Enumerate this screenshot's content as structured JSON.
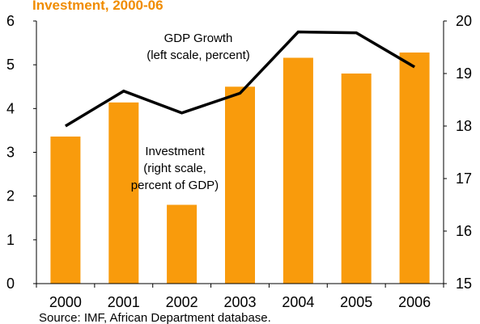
{
  "chart_data": {
    "type": "bar+line",
    "title": "Investment, 2000-06",
    "categories": [
      "2000",
      "2001",
      "2002",
      "2003",
      "2004",
      "2005",
      "2006"
    ],
    "series": [
      {
        "name": "Investment",
        "type": "bar",
        "axis": "right",
        "values": [
          17.8,
          18.45,
          16.5,
          18.75,
          19.3,
          19.0,
          19.4
        ]
      },
      {
        "name": "GDP Growth",
        "type": "line",
        "axis": "left",
        "values": [
          3.6,
          4.4,
          3.9,
          4.35,
          5.75,
          5.73,
          4.95
        ]
      }
    ],
    "left_axis": {
      "ylim": [
        0,
        6
      ],
      "ticks": [
        "0",
        "1",
        "2",
        "3",
        "4",
        "5",
        "6"
      ]
    },
    "right_axis": {
      "ylim": [
        15,
        20
      ],
      "ticks": [
        "15",
        "16",
        "17",
        "18",
        "19",
        "20"
      ]
    },
    "annotations": [
      {
        "target": "GDP Growth",
        "lines": [
          "GDP Growth",
          "(left scale, percent)"
        ]
      },
      {
        "target": "Investment",
        "lines": [
          "Investment",
          "(right scale,",
          "percent of GDP)"
        ]
      }
    ],
    "source": "Source: IMF, African Department database.",
    "colors": {
      "bar": "#f99b0c",
      "line": "#000000",
      "title": "#f08c00"
    },
    "grid": false,
    "legend": "none"
  }
}
